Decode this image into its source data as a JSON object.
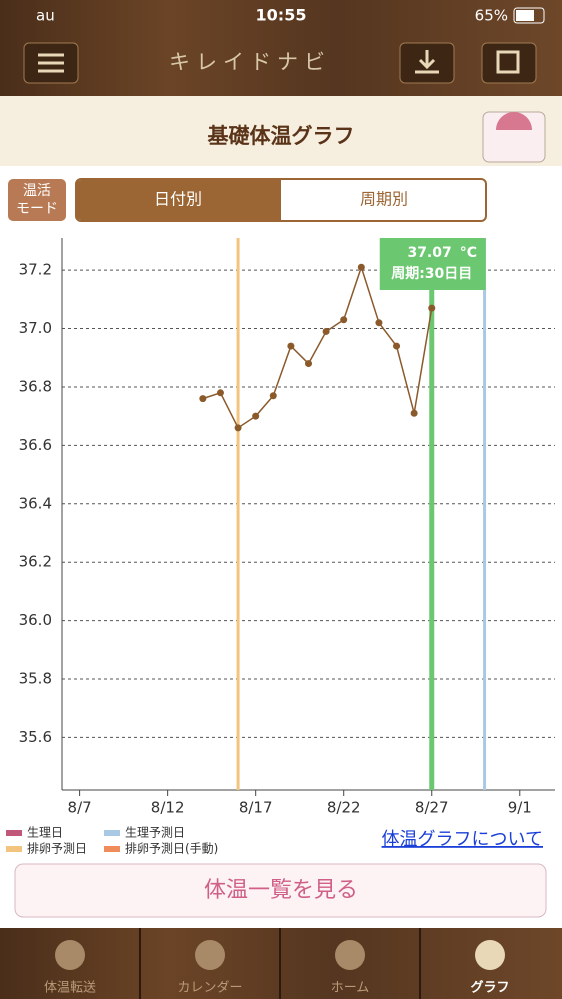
{
  "status_bar": {
    "carrier": "au",
    "time": "10:55",
    "battery": "65%"
  },
  "header": {
    "title": "キレイドナビ"
  },
  "page_title": "基礎体温グラフ",
  "mode_button": {
    "line1": "温活",
    "line2": "モード"
  },
  "tabs": [
    "日付別",
    "周期別"
  ],
  "chart_data": {
    "type": "line",
    "x": [
      "8/14",
      "8/15",
      "8/16",
      "8/17",
      "8/18",
      "8/19",
      "8/20",
      "8/21",
      "8/22",
      "8/23",
      "8/24",
      "8/25",
      "8/26",
      "8/27"
    ],
    "series": [
      {
        "color": "#8b5a2b",
        "values": [
          36.76,
          36.78,
          36.66,
          36.7,
          36.77,
          36.94,
          36.88,
          36.99,
          37.03,
          37.21,
          37.02,
          36.94,
          36.71,
          37.07
        ]
      }
    ],
    "xlim": [
      "8/6",
      "9/3"
    ],
    "xticks": [
      "8/7",
      "8/12",
      "8/17",
      "8/22",
      "8/27",
      "9/1"
    ],
    "ylim": [
      35.42,
      37.31
    ],
    "yticks": [
      35.6,
      35.8,
      {
        "value": 36,
        "label": "36.0"
      },
      36.2,
      36.4,
      36.6,
      36.8,
      {
        "value": 37,
        "label": "37.0"
      },
      37.2
    ],
    "grid": true,
    "markers": [
      {
        "x": "8/16",
        "color": "#f2c47e"
      },
      {
        "x": "8/27",
        "color": "#6cc870"
      },
      {
        "x": "8/30",
        "color": "#a8c8e4"
      }
    ],
    "tooltip": {
      "unit": "°C",
      "cycle": "周期:30日目"
    },
    "legend": [
      {
        "name": "生理日",
        "color": "#c0587a"
      },
      {
        "name": "生理予測日",
        "color": "#a8c8e4"
      },
      {
        "name": "排卵予測日",
        "color": "#f2c47e"
      },
      {
        "name": "排卵予測日(手動)",
        "color": "#f08c5c"
      }
    ]
  },
  "legend_link": "体温グラフについて",
  "list_button": "体温一覧を見る",
  "tab_bar": [
    "体温転送",
    "カレンダー",
    "ホーム",
    "グラフ"
  ]
}
